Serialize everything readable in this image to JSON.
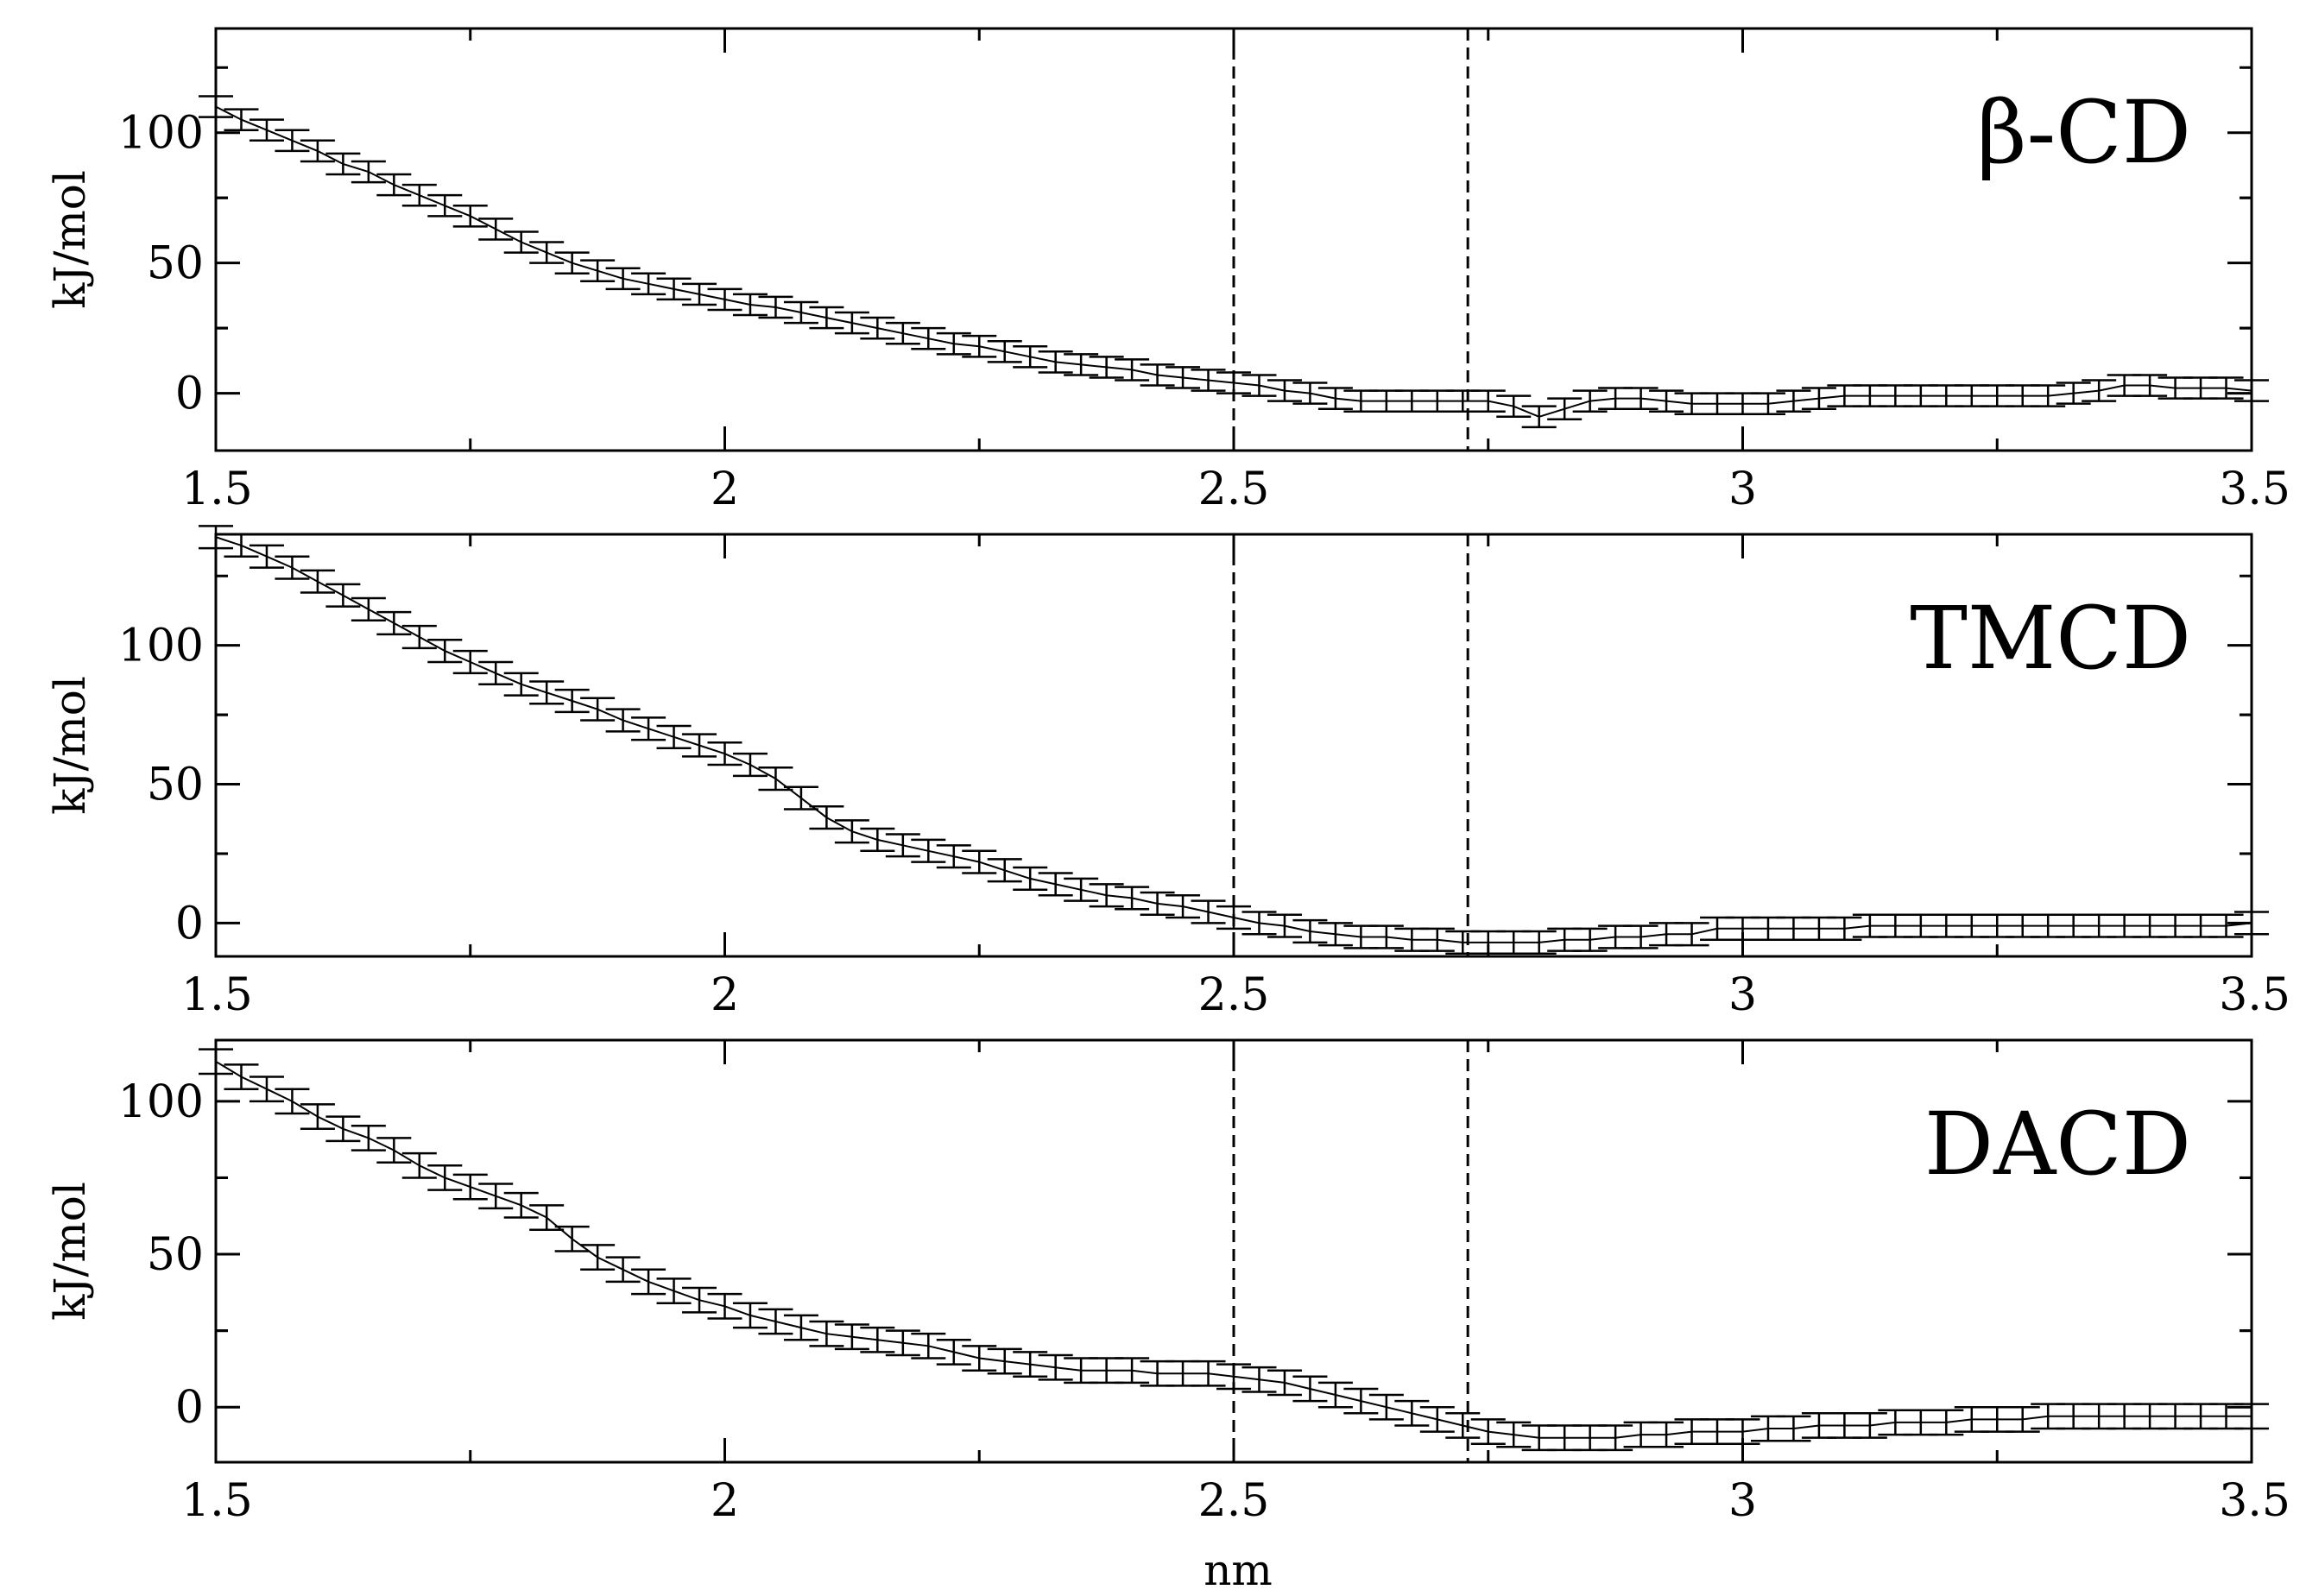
{
  "figure": {
    "xlabel": "nm"
  },
  "chart_data": [
    {
      "type": "line",
      "title": "β-CD",
      "xlabel": "",
      "ylabel": "kJ/mol",
      "xlim": [
        1.5,
        3.5
      ],
      "ylim": [
        -22,
        140
      ],
      "xticks": [
        1.5,
        2,
        2.5,
        3,
        3.5
      ],
      "xtick_labels": [
        "1.5",
        "2",
        "2.5",
        "3",
        "3.5"
      ],
      "yticks": [
        0,
        50,
        100
      ],
      "ytick_labels": [
        "0",
        "50",
        "100"
      ],
      "vlines": [
        2.5,
        2.73
      ],
      "grid": false,
      "series": [
        {
          "x": [
            1.5,
            1.525,
            1.55,
            1.575,
            1.6,
            1.625,
            1.65,
            1.675,
            1.7,
            1.725,
            1.75,
            1.775,
            1.8,
            1.825,
            1.85,
            1.875,
            1.9,
            1.925,
            1.95,
            1.975,
            2.0,
            2.025,
            2.05,
            2.075,
            2.1,
            2.125,
            2.15,
            2.175,
            2.2,
            2.225,
            2.25,
            2.275,
            2.3,
            2.325,
            2.35,
            2.375,
            2.4,
            2.425,
            2.45,
            2.475,
            2.5,
            2.525,
            2.55,
            2.575,
            2.6,
            2.625,
            2.65,
            2.675,
            2.7,
            2.725,
            2.75,
            2.775,
            2.8,
            2.825,
            2.85,
            2.875,
            2.9,
            2.925,
            2.95,
            2.975,
            3.0,
            3.025,
            3.05,
            3.075,
            3.1,
            3.125,
            3.15,
            3.175,
            3.2,
            3.225,
            3.25,
            3.275,
            3.3,
            3.325,
            3.35,
            3.375,
            3.4,
            3.425,
            3.45,
            3.475,
            3.5
          ],
          "y": [
            110,
            105,
            101,
            97,
            93,
            88,
            85,
            80,
            76,
            72,
            68,
            63,
            58,
            54,
            50,
            47,
            44,
            42,
            40,
            38,
            36,
            34,
            33,
            31,
            29,
            27,
            25,
            23,
            21,
            19,
            18,
            16,
            14,
            12,
            11,
            10,
            9,
            7,
            6,
            5,
            4,
            3,
            1,
            0,
            -2,
            -3,
            -3,
            -3,
            -3,
            -3,
            -3,
            -5,
            -9,
            -6,
            -3,
            -2,
            -2,
            -3,
            -4,
            -4,
            -4,
            -4,
            -3,
            -2,
            -1,
            -1,
            -1,
            -1,
            -1,
            -1,
            -1,
            -1,
            -1,
            0,
            1,
            3,
            3,
            2,
            2,
            2,
            1
          ],
          "err": 4
        }
      ]
    },
    {
      "type": "line",
      "title": "TMCD",
      "xlabel": "",
      "ylabel": "kJ/mol",
      "xlim": [
        1.5,
        3.5
      ],
      "ylim": [
        -12,
        140
      ],
      "xticks": [
        1.5,
        2,
        2.5,
        3,
        3.5
      ],
      "xtick_labels": [
        "1.5",
        "2",
        "2.5",
        "3",
        "3.5"
      ],
      "yticks": [
        0,
        50,
        100
      ],
      "ytick_labels": [
        "0",
        "50",
        "100"
      ],
      "vlines": [
        2.5,
        2.73
      ],
      "grid": false,
      "series": [
        {
          "x": [
            1.5,
            1.525,
            1.55,
            1.575,
            1.6,
            1.625,
            1.65,
            1.675,
            1.7,
            1.725,
            1.75,
            1.775,
            1.8,
            1.825,
            1.85,
            1.875,
            1.9,
            1.925,
            1.95,
            1.975,
            2.0,
            2.025,
            2.05,
            2.075,
            2.1,
            2.125,
            2.15,
            2.175,
            2.2,
            2.225,
            2.25,
            2.275,
            2.3,
            2.325,
            2.35,
            2.375,
            2.4,
            2.425,
            2.45,
            2.475,
            2.5,
            2.525,
            2.55,
            2.575,
            2.6,
            2.625,
            2.65,
            2.675,
            2.7,
            2.725,
            2.75,
            2.775,
            2.8,
            2.825,
            2.85,
            2.875,
            2.9,
            2.925,
            2.95,
            2.975,
            3.0,
            3.025,
            3.05,
            3.075,
            3.1,
            3.125,
            3.15,
            3.175,
            3.2,
            3.225,
            3.25,
            3.275,
            3.3,
            3.325,
            3.35,
            3.375,
            3.4,
            3.425,
            3.45,
            3.475,
            3.5
          ],
          "y": [
            139,
            136,
            132,
            128,
            123,
            118,
            113,
            108,
            103,
            98,
            94,
            90,
            86,
            83,
            80,
            77,
            73,
            70,
            67,
            64,
            61,
            57,
            52,
            45,
            38,
            33,
            30,
            28,
            26,
            24,
            22,
            19,
            16,
            14,
            12,
            10,
            9,
            7,
            6,
            4,
            2,
            0,
            -1,
            -3,
            -4,
            -5,
            -5,
            -6,
            -6,
            -7,
            -7,
            -7,
            -7,
            -6,
            -6,
            -5,
            -5,
            -4,
            -4,
            -2,
            -2,
            -2,
            -2,
            -2,
            -2,
            -1,
            -1,
            -1,
            -1,
            -1,
            -1,
            -1,
            -1,
            -1,
            -1,
            -1,
            -1,
            -1,
            -1,
            -1,
            0
          ],
          "err": 4
        }
      ]
    },
    {
      "type": "line",
      "title": "DACD",
      "xlabel": "nm",
      "ylabel": "kJ/mol",
      "xlim": [
        1.5,
        3.5
      ],
      "ylim": [
        -18,
        120
      ],
      "xticks": [
        1.5,
        2,
        2.5,
        3,
        3.5
      ],
      "xtick_labels": [
        "1.5",
        "2",
        "2.5",
        "3",
        "3.5"
      ],
      "yticks": [
        0,
        50,
        100
      ],
      "ytick_labels": [
        "0",
        "50",
        "100"
      ],
      "vlines": [
        2.5,
        2.73
      ],
      "grid": false,
      "series": [
        {
          "x": [
            1.5,
            1.525,
            1.55,
            1.575,
            1.6,
            1.625,
            1.65,
            1.675,
            1.7,
            1.725,
            1.75,
            1.775,
            1.8,
            1.825,
            1.85,
            1.875,
            1.9,
            1.925,
            1.95,
            1.975,
            2.0,
            2.025,
            2.05,
            2.075,
            2.1,
            2.125,
            2.15,
            2.175,
            2.2,
            2.225,
            2.25,
            2.275,
            2.3,
            2.325,
            2.35,
            2.375,
            2.4,
            2.425,
            2.45,
            2.475,
            2.5,
            2.525,
            2.55,
            2.575,
            2.6,
            2.625,
            2.65,
            2.675,
            2.7,
            2.725,
            2.75,
            2.775,
            2.8,
            2.825,
            2.85,
            2.875,
            2.9,
            2.925,
            2.95,
            2.975,
            3.0,
            3.025,
            3.05,
            3.075,
            3.1,
            3.125,
            3.15,
            3.175,
            3.2,
            3.225,
            3.25,
            3.275,
            3.3,
            3.325,
            3.35,
            3.375,
            3.4,
            3.425,
            3.45,
            3.475,
            3.5
          ],
          "y": [
            113,
            108,
            104,
            100,
            95,
            91,
            88,
            84,
            79,
            75,
            72,
            69,
            66,
            62,
            55,
            49,
            45,
            41,
            38,
            35,
            33,
            30,
            28,
            26,
            24,
            23,
            22,
            21,
            20,
            18,
            16,
            15,
            14,
            13,
            12,
            12,
            12,
            11,
            11,
            11,
            10,
            9,
            8,
            6,
            4,
            2,
            0,
            -2,
            -4,
            -6,
            -8,
            -9,
            -10,
            -10,
            -10,
            -10,
            -9,
            -9,
            -8,
            -8,
            -8,
            -7,
            -7,
            -6,
            -6,
            -6,
            -5,
            -5,
            -5,
            -4,
            -4,
            -4,
            -3,
            -3,
            -3,
            -3,
            -3,
            -3,
            -3,
            -3,
            -3
          ],
          "err": 4
        }
      ]
    }
  ]
}
